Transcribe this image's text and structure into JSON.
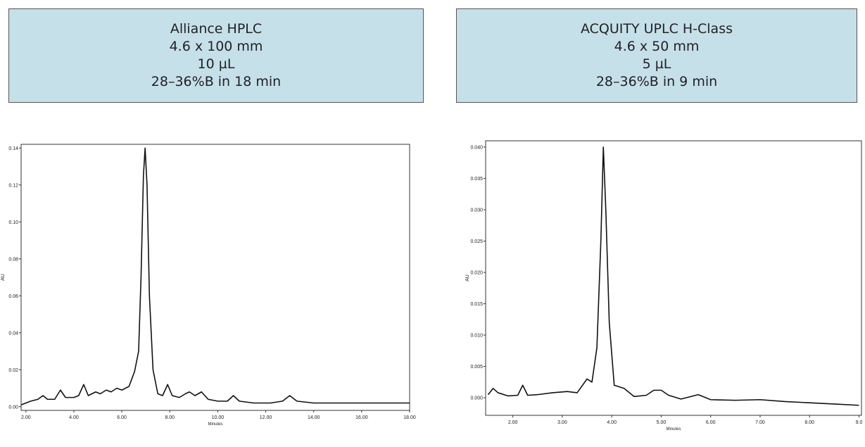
{
  "chart_data": [
    {
      "type": "line",
      "title": [
        "Alliance HPLC",
        "4.6 x 100 mm",
        "10 µL",
        "28–36%B in 18 min"
      ],
      "xlabel": "Minutes",
      "ylabel": "AU",
      "color": "#111111",
      "xlim": [
        1.8,
        18
      ],
      "ylim": [
        -0.002,
        0.142
      ],
      "xticks": [
        {
          "value": 2,
          "label": "2.00"
        },
        {
          "value": 4,
          "label": "4.00"
        },
        {
          "value": 6,
          "label": "6.00"
        },
        {
          "value": 8,
          "label": "8.00"
        },
        {
          "value": 10,
          "label": "10.00"
        },
        {
          "value": 12,
          "label": "12.00"
        },
        {
          "value": 14,
          "label": "14.00"
        },
        {
          "value": 16,
          "label": "16.00"
        },
        {
          "value": 18,
          "label": "18.00"
        }
      ],
      "yticks": [
        {
          "value": 0,
          "label": "0.00"
        },
        {
          "value": 0.02,
          "label": "0.02"
        },
        {
          "value": 0.04,
          "label": "0.04"
        },
        {
          "value": 0.06,
          "label": "0.06"
        },
        {
          "value": 0.08,
          "label": "0.08"
        },
        {
          "value": 0.1,
          "label": "0.10"
        },
        {
          "value": 0.12,
          "label": "0.12"
        },
        {
          "value": 0.14,
          "label": "0.14"
        }
      ],
      "x": [
        1.8,
        2.2,
        2.5,
        2.71,
        2.9,
        3.2,
        3.44,
        3.65,
        4.0,
        4.2,
        4.41,
        4.6,
        4.75,
        4.91,
        5.1,
        5.35,
        5.55,
        5.79,
        6.0,
        6.3,
        6.53,
        6.7,
        6.8,
        6.9,
        6.97,
        7.05,
        7.15,
        7.3,
        7.5,
        7.7,
        7.91,
        8.1,
        8.4,
        8.65,
        8.82,
        9.05,
        9.32,
        9.6,
        10.0,
        10.4,
        10.65,
        10.9,
        11.5,
        12.2,
        12.7,
        13.0,
        13.3,
        14.0,
        15.0,
        16.24,
        17.0,
        18.0
      ],
      "values": [
        0.001,
        0.003,
        0.004,
        0.006,
        0.004,
        0.004,
        0.009,
        0.005,
        0.005,
        0.006,
        0.012,
        0.006,
        0.007,
        0.008,
        0.007,
        0.009,
        0.008,
        0.01,
        0.009,
        0.011,
        0.019,
        0.03,
        0.07,
        0.125,
        0.14,
        0.12,
        0.06,
        0.02,
        0.007,
        0.006,
        0.012,
        0.006,
        0.005,
        0.007,
        0.008,
        0.006,
        0.008,
        0.004,
        0.003,
        0.003,
        0.006,
        0.003,
        0.002,
        0.002,
        0.003,
        0.006,
        0.003,
        0.002,
        0.002,
        0.002,
        0.002,
        0.002
      ]
    },
    {
      "type": "line",
      "title": [
        "ACQUITY UPLC H-Class",
        "4.6 x 50 mm",
        "5 µL",
        "28–36%B in 9 min"
      ],
      "xlabel": "Minutes",
      "ylabel": "AU",
      "color": "#111111",
      "xlim": [
        1.45,
        9.05
      ],
      "ylim": [
        -0.0028,
        0.041
      ],
      "xticks": [
        {
          "value": 2,
          "label": "2.00"
        },
        {
          "value": 3,
          "label": "3.00"
        },
        {
          "value": 4,
          "label": "4.00"
        },
        {
          "value": 5,
          "label": "5.00"
        },
        {
          "value": 6,
          "label": "6.00"
        },
        {
          "value": 7,
          "label": "7.00"
        },
        {
          "value": 8,
          "label": "8.00"
        },
        {
          "value": 9,
          "label": "9.0"
        }
      ],
      "yticks": [
        {
          "value": 0,
          "label": "0.000"
        },
        {
          "value": 0.005,
          "label": "0.005"
        },
        {
          "value": 0.01,
          "label": "0.010"
        },
        {
          "value": 0.015,
          "label": "0.015"
        },
        {
          "value": 0.02,
          "label": "0.020"
        },
        {
          "value": 0.025,
          "label": "0.025"
        },
        {
          "value": 0.03,
          "label": "0.030"
        },
        {
          "value": 0.035,
          "label": "0.035"
        },
        {
          "value": 0.04,
          "label": "0.040"
        }
      ],
      "x": [
        1.5,
        1.6,
        1.7,
        1.9,
        2.1,
        2.2,
        2.3,
        2.5,
        2.8,
        3.1,
        3.3,
        3.5,
        3.6,
        3.7,
        3.78,
        3.83,
        3.88,
        3.95,
        4.05,
        4.25,
        4.45,
        4.7,
        4.85,
        5.0,
        5.15,
        5.4,
        5.75,
        6.0,
        6.5,
        7.0,
        7.5,
        8.0,
        8.5,
        9.0
      ],
      "values": [
        0.0005,
        0.0015,
        0.0008,
        0.0003,
        0.0004,
        0.002,
        0.0004,
        0.0005,
        0.0008,
        0.001,
        0.0008,
        0.003,
        0.0025,
        0.008,
        0.025,
        0.04,
        0.03,
        0.012,
        0.002,
        0.0015,
        0.0002,
        0.0004,
        0.0012,
        0.0012,
        0.0004,
        -0.0002,
        0.0005,
        -0.0003,
        -0.0004,
        -0.0003,
        -0.0006,
        -0.0008,
        -0.001,
        -0.0012
      ]
    }
  ]
}
